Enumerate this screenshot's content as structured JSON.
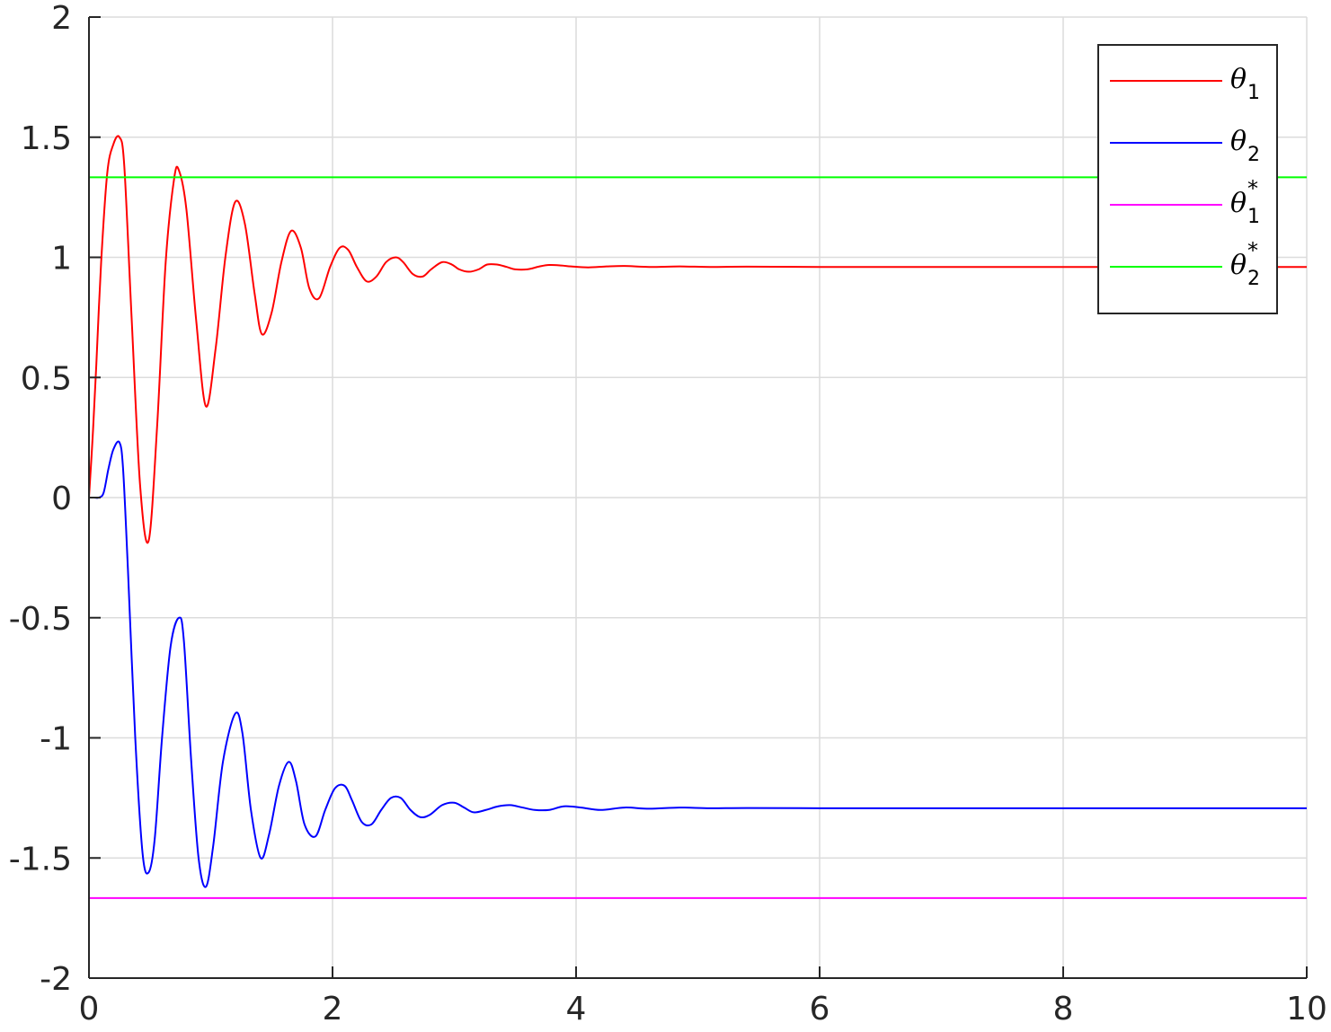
{
  "chart_data": {
    "type": "line",
    "title": "",
    "xlabel": "",
    "ylabel": "",
    "xlim": [
      0,
      10
    ],
    "ylim": [
      -2,
      2
    ],
    "grid": true,
    "legend_position": "top-right",
    "x_ticks": [
      "0",
      "2",
      "4",
      "6",
      "8",
      "10"
    ],
    "y_ticks": [
      "-2",
      "-1.5",
      "-1",
      "-0.5",
      "0",
      "0.5",
      "1",
      "1.5",
      "2"
    ],
    "x_tick_values": [
      0,
      2,
      4,
      6,
      8,
      10
    ],
    "y_tick_values": [
      -2,
      -1.5,
      -1,
      -0.5,
      0,
      0.5,
      1,
      1.5,
      2
    ],
    "colors": {
      "theta1": "#ff0000",
      "theta2": "#0000ff",
      "theta1_star": "#ff00ff",
      "theta2_star": "#00ff00",
      "grid": "#dcdcdc",
      "axis": "#262626"
    },
    "series": [
      {
        "name": "θ1",
        "legend_symbol": "θ",
        "legend_sub": "1",
        "legend_sup": "",
        "color": "#ff0000",
        "x": [
          0,
          0.03,
          0.06,
          0.1,
          0.15,
          0.2,
          0.25,
          0.29,
          0.35,
          0.42,
          0.49,
          0.56,
          0.63,
          0.7,
          0.74,
          0.8,
          0.88,
          0.96,
          1.04,
          1.12,
          1.2,
          1.28,
          1.36,
          1.42,
          1.5,
          1.58,
          1.66,
          1.74,
          1.81,
          1.89,
          1.98,
          2.06,
          2.13,
          2.2,
          2.28,
          2.36,
          2.44,
          2.52,
          2.58,
          2.66,
          2.74,
          2.81,
          2.9,
          2.98,
          3.04,
          3.12,
          3.2,
          3.27,
          3.35,
          3.43,
          3.5,
          3.6,
          3.7,
          3.78,
          3.88,
          3.96,
          4.1,
          4.25,
          4.4,
          4.6,
          4.85,
          5.1,
          5.4,
          6.0,
          7.0,
          8.0,
          9.0,
          10.0
        ],
        "y": [
          0,
          0.25,
          0.55,
          0.98,
          1.35,
          1.47,
          1.5,
          1.38,
          0.75,
          0.05,
          -0.18,
          0.3,
          0.98,
          1.33,
          1.36,
          1.2,
          0.74,
          0.38,
          0.62,
          1.0,
          1.23,
          1.14,
          0.85,
          0.68,
          0.77,
          0.98,
          1.11,
          1.04,
          0.87,
          0.83,
          0.96,
          1.04,
          1.03,
          0.96,
          0.9,
          0.92,
          0.98,
          1.0,
          0.98,
          0.93,
          0.92,
          0.95,
          0.98,
          0.97,
          0.95,
          0.94,
          0.95,
          0.97,
          0.97,
          0.96,
          0.95,
          0.95,
          0.962,
          0.968,
          0.966,
          0.962,
          0.958,
          0.962,
          0.964,
          0.96,
          0.962,
          0.96,
          0.961,
          0.96,
          0.96,
          0.96,
          0.96,
          0.96
        ]
      },
      {
        "name": "θ2",
        "legend_symbol": "θ",
        "legend_sub": "2",
        "legend_sup": "",
        "color": "#0000ff",
        "x": [
          0,
          0.04,
          0.08,
          0.12,
          0.16,
          0.2,
          0.25,
          0.28,
          0.32,
          0.38,
          0.44,
          0.49,
          0.54,
          0.6,
          0.67,
          0.74,
          0.78,
          0.84,
          0.9,
          0.96,
          1.02,
          1.1,
          1.2,
          1.26,
          1.33,
          1.41,
          1.48,
          1.56,
          1.64,
          1.7,
          1.77,
          1.86,
          1.94,
          2.02,
          2.1,
          2.16,
          2.24,
          2.32,
          2.4,
          2.48,
          2.56,
          2.64,
          2.72,
          2.8,
          2.9,
          3.0,
          3.08,
          3.16,
          3.26,
          3.36,
          3.46,
          3.56,
          3.66,
          3.78,
          3.9,
          4.04,
          4.2,
          4.4,
          4.6,
          4.85,
          5.1,
          5.4,
          6.0,
          7.0,
          8.0,
          9.0,
          10.0
        ],
        "y": [
          0,
          0,
          0,
          0.02,
          0.12,
          0.2,
          0.23,
          0.12,
          -0.3,
          -1.0,
          -1.48,
          -1.56,
          -1.42,
          -1.0,
          -0.62,
          -0.5,
          -0.6,
          -1.1,
          -1.5,
          -1.62,
          -1.45,
          -1.1,
          -0.9,
          -0.98,
          -1.3,
          -1.5,
          -1.4,
          -1.2,
          -1.1,
          -1.18,
          -1.36,
          -1.41,
          -1.3,
          -1.21,
          -1.2,
          -1.26,
          -1.35,
          -1.36,
          -1.3,
          -1.25,
          -1.25,
          -1.3,
          -1.33,
          -1.32,
          -1.28,
          -1.27,
          -1.29,
          -1.31,
          -1.3,
          -1.285,
          -1.28,
          -1.29,
          -1.3,
          -1.3,
          -1.285,
          -1.29,
          -1.3,
          -1.29,
          -1.295,
          -1.29,
          -1.293,
          -1.292,
          -1.293,
          -1.293,
          -1.293,
          -1.293,
          -1.293
        ]
      },
      {
        "name": "θ*1",
        "legend_symbol": "θ",
        "legend_sub": "1",
        "legend_sup": "*",
        "color": "#ff00ff",
        "x": [
          0,
          10
        ],
        "y": [
          -1.667,
          -1.667
        ]
      },
      {
        "name": "θ*2",
        "legend_symbol": "θ",
        "legend_sub": "2",
        "legend_sup": "*",
        "color": "#00ff00",
        "x": [
          0,
          10
        ],
        "y": [
          1.333,
          1.333
        ]
      }
    ]
  }
}
